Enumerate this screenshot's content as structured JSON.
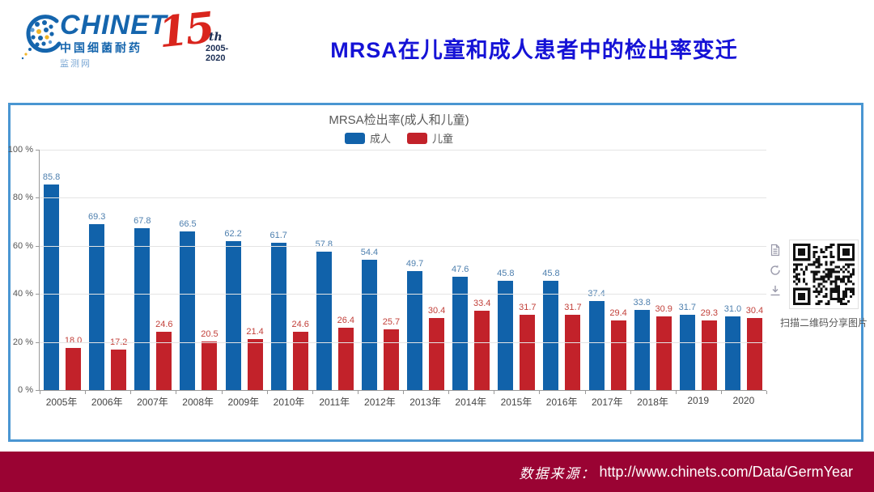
{
  "header": {
    "logo": {
      "brand": "CHINET",
      "sub1": "中国细菌耐药",
      "sub2": "监测网"
    },
    "anniversary": {
      "number": "15",
      "suffix": "th",
      "years": "2005-2020"
    },
    "title": "MRSA在儿童和成人患者中的检出率变迁"
  },
  "chart_panel": {
    "toolbox_icons": [
      "data-view-icon",
      "restore-icon",
      "save-image-icon"
    ],
    "qr_caption": "扫描二维码分享图片"
  },
  "chart_data": {
    "type": "bar",
    "title": "MRSA检出率(成人和儿童)",
    "categories": [
      "2005年",
      "2006年",
      "2007年",
      "2008年",
      "2009年",
      "2010年",
      "2011年",
      "2012年",
      "2013年",
      "2014年",
      "2015年",
      "2016年",
      "2017年",
      "2018年",
      "2019",
      "2020"
    ],
    "series": [
      {
        "name": "成人",
        "color": "#1162aa",
        "label_color": "#4d7fae",
        "values": [
          85.8,
          69.3,
          67.8,
          66.5,
          62.2,
          61.7,
          57.8,
          54.4,
          49.7,
          47.6,
          45.8,
          45.8,
          37.4,
          33.8,
          31.7,
          31.0
        ]
      },
      {
        "name": "儿童",
        "color": "#c2222a",
        "label_color": "#c2403a",
        "values": [
          18.0,
          17.2,
          24.6,
          20.5,
          21.4,
          24.6,
          26.4,
          25.7,
          30.4,
          33.4,
          31.7,
          31.7,
          29.4,
          30.9,
          29.3,
          30.4
        ]
      }
    ],
    "ylim": [
      0,
      100
    ],
    "yticks": [
      0,
      20,
      40,
      60,
      80,
      100
    ],
    "ytick_suffix": " %",
    "grid": true,
    "legend_position": "top"
  },
  "footer": {
    "source_label": "数据来源：",
    "source_url": "http://www.chinets.com/Data/GermYear"
  },
  "colors": {
    "accent_blue_border": "#4a96d2",
    "title_blue": "#1512d6",
    "footer_red": "#9a0333",
    "adult_bar": "#1162aa",
    "child_bar": "#c2222a"
  }
}
